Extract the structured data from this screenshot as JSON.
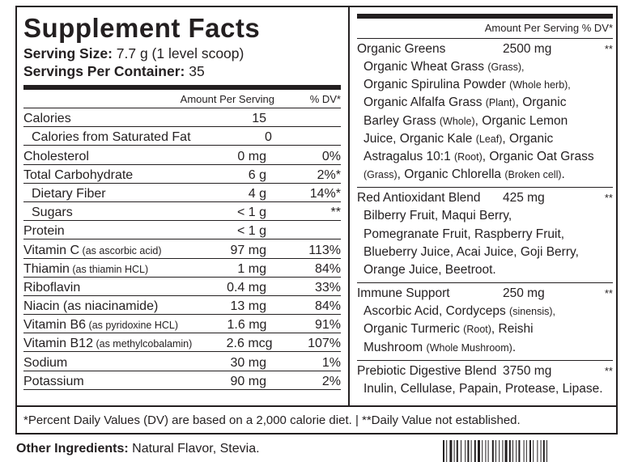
{
  "title": "Supplement Facts",
  "serving_size_label": "Serving Size:",
  "serving_size_value": " 7.7 g (1 level scoop)",
  "servings_label": "Servings Per Container:",
  "servings_value": " 35",
  "col_amount": "Amount Per Serving",
  "col_dv": "% DV*",
  "nutrients": [
    {
      "name": "Calories",
      "note": "",
      "amount": "15",
      "dv": "",
      "indent": false
    },
    {
      "name": "Calories from Saturated Fat",
      "note": "",
      "amount": "0",
      "dv": "",
      "indent": true
    },
    {
      "name": "Cholesterol",
      "note": "",
      "amount": "0 mg",
      "dv": "0%",
      "indent": false
    },
    {
      "name": "Total Carbohydrate",
      "note": "",
      "amount": "6 g",
      "dv": "2%*",
      "indent": false
    },
    {
      "name": "Dietary Fiber",
      "note": "",
      "amount": "4 g",
      "dv": "14%*",
      "indent": true
    },
    {
      "name": "Sugars",
      "note": "",
      "amount": "< 1 g",
      "dv": "**",
      "indent": true
    },
    {
      "name": "Protein",
      "note": "",
      "amount": "< 1 g",
      "dv": "",
      "indent": false
    },
    {
      "name": "Vitamin C",
      "note": " (as ascorbic acid)",
      "amount": "97 mg",
      "dv": "113%",
      "indent": false
    },
    {
      "name": "Thiamin",
      "note": " (as thiamin HCL)",
      "amount": "1 mg",
      "dv": "84%",
      "indent": false
    },
    {
      "name": "Riboflavin",
      "note": "",
      "amount": "0.4 mg",
      "dv": "33%",
      "indent": false
    },
    {
      "name": "Niacin (as niacinamide)",
      "note": "",
      "amount": "13 mg",
      "dv": "84%",
      "indent": false
    },
    {
      "name": "Vitamin B6",
      "note": " (as pyridoxine HCL)",
      "amount": "1.6 mg",
      "dv": "91%",
      "indent": false
    },
    {
      "name": "Vitamin B12",
      "note": " (as methylcobalamin)",
      "amount": "2.6 mcg",
      "dv": "107%",
      "indent": false
    },
    {
      "name": "Sodium",
      "note": "",
      "amount": "30 mg",
      "dv": "1%",
      "indent": false
    },
    {
      "name": "Potassium",
      "note": "",
      "amount": "90 mg",
      "dv": "2%",
      "indent": false
    }
  ],
  "right_header": "Amount Per Serving  % DV*",
  "blends": [
    {
      "name": "Organic Greens",
      "amount": "2500 mg",
      "dv": "**",
      "ingredients_html": [
        [
          "Organic Wheat Grass ",
          "(Grass),"
        ],
        [
          "Organic Spirulina Powder ",
          "(Whole herb),"
        ],
        [
          "Organic Alfalfa Grass ",
          "(Plant)",
          ", Organic"
        ],
        [
          "Barley Grass ",
          "(Whole)",
          ", Organic Lemon"
        ],
        [
          "Juice, Organic Kale ",
          "(Leaf)",
          ", Organic"
        ],
        [
          "Astragalus 10:1 ",
          "(Root)",
          ", Organic Oat Grass"
        ],
        [
          "",
          "(Grass)",
          ", Organic Chlorella ",
          "(Broken cell)",
          "."
        ]
      ]
    },
    {
      "name": "Red Antioxidant Blend",
      "amount": "425 mg",
      "dv": "**",
      "ingredients_html": [
        [
          "Bilberry Fruit, Maqui Berry,"
        ],
        [
          "Pomegranate Fruit, Raspberry Fruit,"
        ],
        [
          "Blueberry Juice, Acai Juice, Goji Berry,"
        ],
        [
          "Orange Juice, Beetroot."
        ]
      ]
    },
    {
      "name": "Immune Support",
      "amount": "250 mg",
      "dv": "**",
      "ingredients_html": [
        [
          "Ascorbic Acid, Cordyceps ",
          "(sinensis),"
        ],
        [
          "Organic Turmeric ",
          "(Root)",
          ", Reishi"
        ],
        [
          "Mushroom ",
          "(Whole Mushroom)",
          "."
        ]
      ]
    },
    {
      "name": "Prebiotic Digestive Blend",
      "amount": "3750 mg",
      "dv": "**",
      "ingredients_html": [
        [
          "Inulin, Cellulase, Papain, Protease, Lipase."
        ]
      ]
    }
  ],
  "footnote": "*Percent Daily Values (DV) are based on a 2,000 calorie diet.  |  **Daily Value not established.",
  "other_label": "Other Ingredients:",
  "other_value": " Natural Flavor, Stevia."
}
